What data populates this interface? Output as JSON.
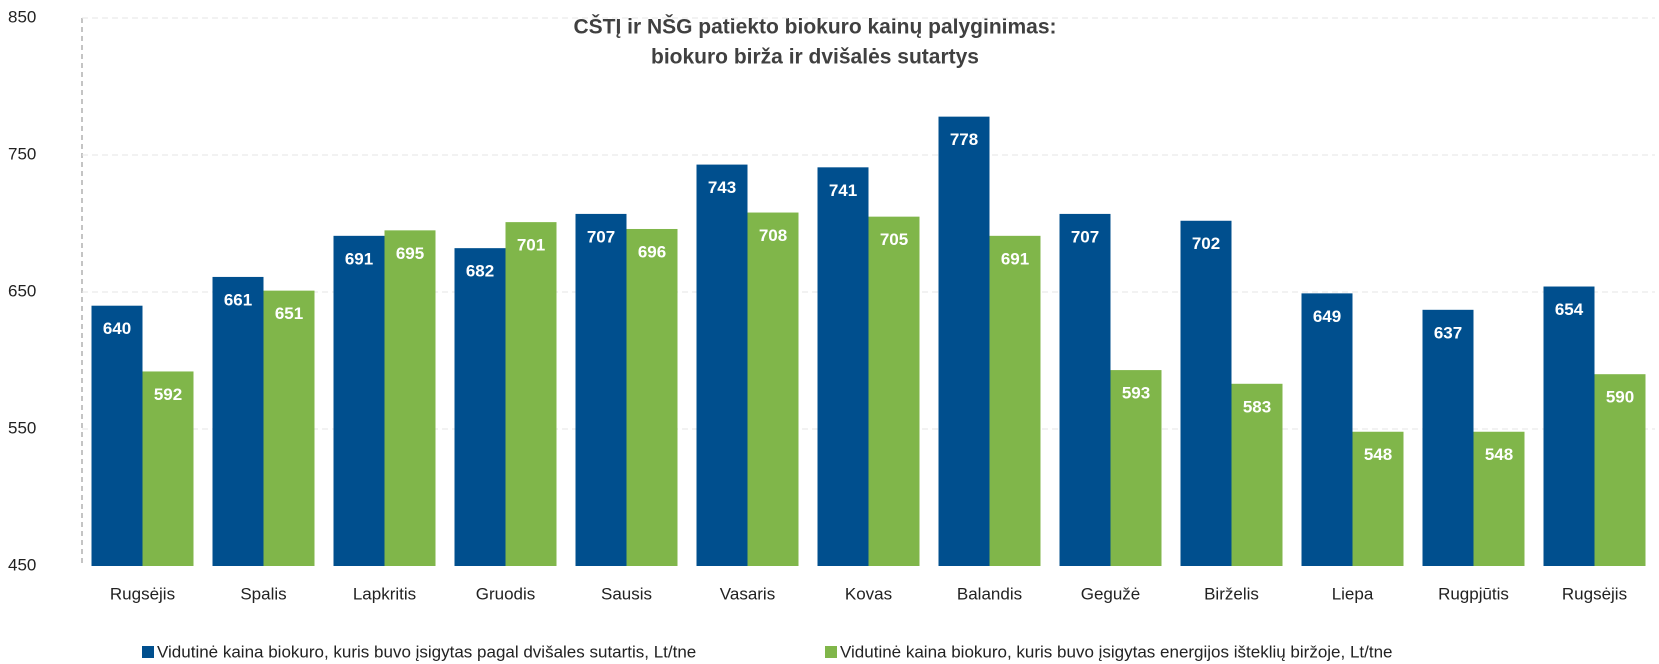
{
  "chart_data": {
    "type": "bar",
    "title": "CŠTĮ ir NŠG patiekto biokuro kainų palyginimas:",
    "subtitle": "biokuro birža ir dvišalės sutartys",
    "categories": [
      "Rugsėjis",
      "Spalis",
      "Lapkritis",
      "Gruodis",
      "Sausis",
      "Vasaris",
      "Kovas",
      "Balandis",
      "Gegužė",
      "Birželis",
      "Liepa",
      "Rugpjūtis",
      "Rugsėjis"
    ],
    "series": [
      {
        "name": "Vidutinė  kaina biokuro, kuris buvo įsigytas pagal dvišales sutartis, Lt/tne",
        "color": "#004f8e",
        "values": [
          640,
          661,
          691,
          682,
          707,
          743,
          741,
          778,
          707,
          702,
          649,
          637,
          654
        ]
      },
      {
        "name": "Vidutinė kaina  biokuro, kuris buvo įsigytas energijos išteklių biržoje, Lt/tne",
        "color": "#80b64a",
        "values": [
          592,
          651,
          695,
          701,
          696,
          708,
          705,
          691,
          593,
          583,
          548,
          548,
          590
        ]
      }
    ],
    "ylim": [
      450,
      850
    ],
    "yticks": [
      450,
      550,
      650,
      750,
      850
    ],
    "grid": true
  }
}
